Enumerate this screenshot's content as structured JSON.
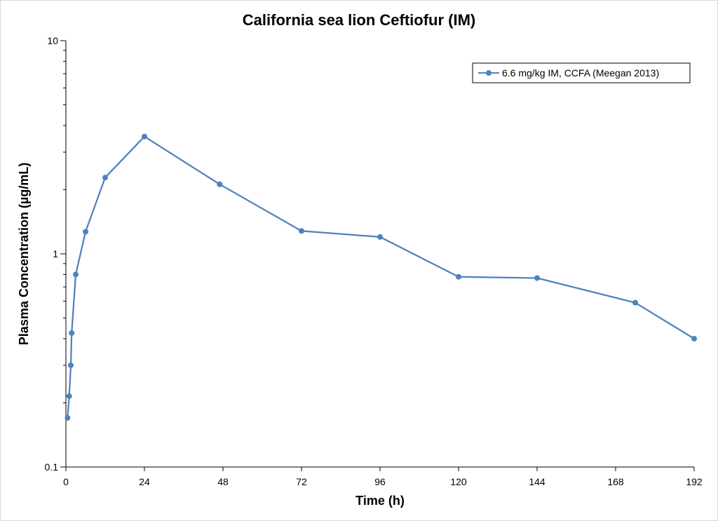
{
  "chart_data": {
    "type": "line",
    "title": "California sea lion Ceftiofur (IM)",
    "xlabel": "Time (h)",
    "ylabel": "Plasma Concentration (µg/mL)",
    "xlim": [
      0,
      192
    ],
    "ylim": [
      0.1,
      10
    ],
    "yscale": "log",
    "x_ticks": [
      0,
      24,
      48,
      72,
      96,
      120,
      144,
      168,
      192
    ],
    "x_tick_labels": [
      "0",
      "24",
      "48",
      "72",
      "96",
      "120",
      "144",
      "168",
      "192"
    ],
    "y_ticks": [
      0.1,
      1,
      10
    ],
    "y_tick_labels": [
      "0.1",
      "1",
      "10"
    ],
    "grid": false,
    "legend_position": "top-right",
    "series": [
      {
        "name": "6.6 mg/kg IM, CCFA (Meegan 2013)",
        "color": "#4f81bd",
        "marker": "circle",
        "x": [
          0.5,
          1,
          1.5,
          1.75,
          3,
          6,
          12,
          24,
          47,
          72,
          96,
          120,
          144,
          174,
          192
        ],
        "y": [
          0.17,
          0.215,
          0.3,
          0.425,
          0.8,
          1.27,
          2.28,
          3.55,
          2.12,
          1.28,
          1.2,
          0.78,
          0.77,
          0.59,
          0.4
        ]
      }
    ]
  }
}
